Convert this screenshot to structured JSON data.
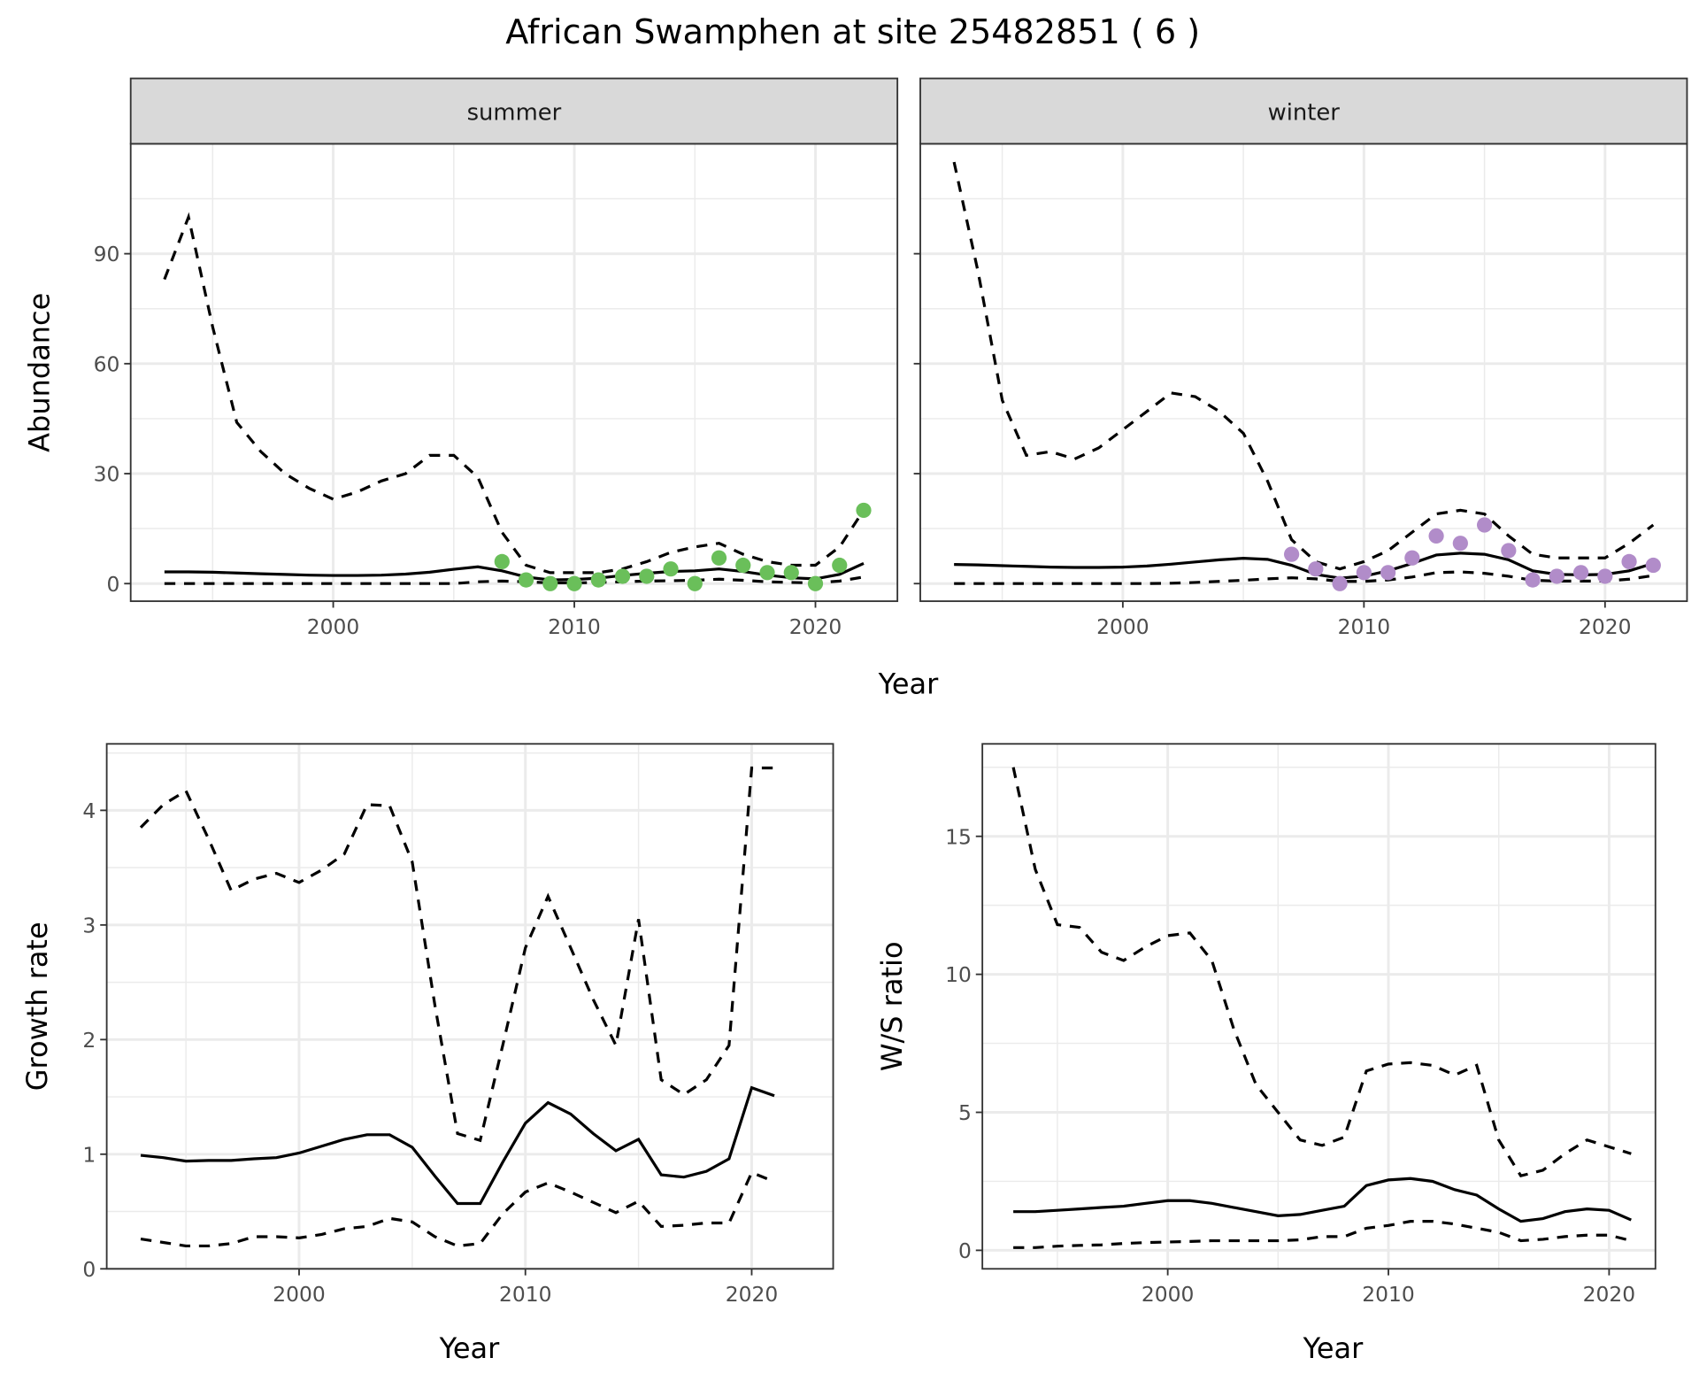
{
  "title": "African Swamphen at site 25482851 ( 6 )",
  "colors": {
    "summer_points": "#6abf5a",
    "winter_points": "#b18cc9",
    "lines": "#000000",
    "strip_bg": "#d9d9d9",
    "grid": "#ebebeb"
  },
  "chart_data": [
    {
      "type": "line",
      "facet": true,
      "xlabel": "Year",
      "ylabel": "Abundance",
      "xlim": [
        1991.6,
        2023.4
      ],
      "ylim": [
        -4.8,
        120
      ],
      "xticks": [
        2000,
        2010,
        2020
      ],
      "yticks": [
        0,
        30,
        60,
        90
      ],
      "grid": true,
      "panels": [
        {
          "strip": "summer",
          "x": [
            1993,
            1994,
            1995,
            1996,
            1997,
            1998,
            1999,
            2000,
            2001,
            2002,
            2003,
            2004,
            2005,
            2006,
            2007,
            2008,
            2009,
            2010,
            2011,
            2012,
            2013,
            2014,
            2015,
            2016,
            2017,
            2018,
            2019,
            2020,
            2021,
            2022
          ],
          "estimate": [
            3.2,
            3.2,
            3.1,
            2.9,
            2.7,
            2.5,
            2.3,
            2.2,
            2.2,
            2.3,
            2.6,
            3.1,
            3.9,
            4.6,
            3.5,
            1.8,
            1.0,
            1.1,
            1.5,
            2.2,
            2.8,
            3.3,
            3.5,
            4.0,
            3.3,
            2.3,
            1.6,
            1.3,
            2.5,
            5.5
          ],
          "upper": [
            83,
            100,
            70,
            44,
            36,
            30,
            26,
            23,
            25,
            28,
            30,
            35,
            35,
            29,
            14,
            5,
            3,
            3,
            3,
            4,
            6,
            8.5,
            10,
            11,
            8,
            6,
            5,
            5,
            10,
            20
          ],
          "lower": [
            0,
            0,
            0,
            0,
            0,
            0,
            0,
            0,
            0,
            0,
            0,
            0,
            0,
            0.5,
            0.7,
            0.5,
            0.2,
            0.2,
            0.3,
            0.5,
            0.7,
            0.8,
            0.9,
            1.2,
            0.9,
            0.5,
            0.3,
            0.2,
            0.7,
            1.8
          ],
          "points_x": [
            2007,
            2008,
            2009,
            2010,
            2011,
            2012,
            2013,
            2014,
            2015,
            2016,
            2017,
            2018,
            2019,
            2020,
            2021,
            2022
          ],
          "points_y": [
            6,
            1,
            0,
            0,
            1,
            2,
            2,
            4,
            0,
            7,
            5,
            3,
            3,
            0,
            5,
            20
          ]
        },
        {
          "strip": "winter",
          "x": [
            1993,
            1994,
            1995,
            1996,
            1997,
            1998,
            1999,
            2000,
            2001,
            2002,
            2003,
            2004,
            2005,
            2006,
            2007,
            2008,
            2009,
            2010,
            2011,
            2012,
            2013,
            2014,
            2015,
            2016,
            2017,
            2018,
            2019,
            2020,
            2021,
            2022
          ],
          "estimate": [
            5.2,
            5.1,
            4.9,
            4.7,
            4.5,
            4.4,
            4.4,
            4.5,
            4.8,
            5.3,
            5.9,
            6.5,
            6.9,
            6.6,
            5,
            2.5,
            1.5,
            2,
            3.5,
            5.5,
            7.8,
            8.3,
            8,
            6.5,
            3.5,
            2.5,
            2.4,
            2.5,
            3.5,
            5.5
          ],
          "upper": [
            115,
            85,
            50,
            35,
            36,
            34,
            37,
            42,
            47,
            52,
            51,
            47,
            41,
            28,
            12,
            6,
            4,
            6,
            9,
            14,
            19,
            20,
            19,
            13,
            8,
            7,
            7,
            7,
            11,
            16
          ],
          "lower": [
            0,
            0,
            0,
            0,
            0,
            0,
            0,
            0,
            0,
            0.1,
            0.3,
            0.6,
            0.9,
            1.3,
            1.6,
            1.3,
            0.6,
            0.6,
            1.0,
            1.8,
            3.0,
            3.2,
            2.8,
            2.0,
            0.9,
            0.7,
            0.7,
            0.7,
            1.2,
            2.2
          ],
          "points_x": [
            2007,
            2008,
            2009,
            2010,
            2011,
            2012,
            2013,
            2014,
            2015,
            2016,
            2017,
            2018,
            2019,
            2020,
            2021,
            2022
          ],
          "points_y": [
            8,
            4,
            0,
            3,
            3,
            7,
            13,
            11,
            16,
            9,
            1,
            2,
            3,
            2,
            6,
            5
          ]
        }
      ]
    },
    {
      "type": "line",
      "xlabel": "Year",
      "ylabel": "Growth rate",
      "xlim": [
        1991.5,
        2023.6
      ],
      "ylim": [
        0,
        4.58
      ],
      "xticks": [
        2000,
        2010,
        2020
      ],
      "yticks": [
        0,
        1,
        2,
        3,
        4
      ],
      "grid": true,
      "x": [
        1993,
        1994,
        1995,
        1996,
        1997,
        1998,
        1999,
        2000,
        2001,
        2002,
        2003,
        2004,
        2005,
        2006,
        2007,
        2008,
        2009,
        2010,
        2011,
        2012,
        2013,
        2014,
        2015,
        2016,
        2017,
        2018,
        2019,
        2020,
        2021
      ],
      "estimate": [
        0.99,
        0.97,
        0.94,
        0.945,
        0.945,
        0.96,
        0.97,
        1.01,
        1.07,
        1.13,
        1.17,
        1.17,
        1.06,
        0.81,
        0.57,
        0.57,
        0.93,
        1.27,
        1.45,
        1.35,
        1.18,
        1.03,
        1.13,
        0.82,
        0.8,
        0.85,
        0.96,
        1.58,
        1.51
      ],
      "upper": [
        3.85,
        4.05,
        4.17,
        3.75,
        3.3,
        3.4,
        3.45,
        3.37,
        3.48,
        3.62,
        4.05,
        4.04,
        3.55,
        2.3,
        1.18,
        1.12,
        1.95,
        2.8,
        3.25,
        2.8,
        2.35,
        1.95,
        3.05,
        1.65,
        1.52,
        1.65,
        1.95,
        4.37,
        4.37
      ],
      "lower": [
        0.26,
        0.23,
        0.2,
        0.2,
        0.22,
        0.28,
        0.28,
        0.27,
        0.3,
        0.35,
        0.37,
        0.44,
        0.41,
        0.28,
        0.2,
        0.22,
        0.48,
        0.67,
        0.75,
        0.67,
        0.58,
        0.49,
        0.59,
        0.37,
        0.38,
        0.4,
        0.4,
        0.84,
        0.76
      ]
    },
    {
      "type": "line",
      "xlabel": "Year",
      "ylabel": "W/S ratio",
      "xlim": [
        1991.6,
        2022.1
      ],
      "ylim": [
        -0.67,
        18.35
      ],
      "xticks": [
        2000,
        2010,
        2020
      ],
      "yticks": [
        0,
        5,
        10,
        15
      ],
      "grid": true,
      "x": [
        1993,
        1994,
        1995,
        1996,
        1997,
        1998,
        1999,
        2000,
        2001,
        2002,
        2003,
        2004,
        2005,
        2006,
        2007,
        2008,
        2009,
        2010,
        2011,
        2012,
        2013,
        2014,
        2015,
        2016,
        2017,
        2018,
        2019,
        2020,
        2021
      ],
      "estimate": [
        1.4,
        1.4,
        1.45,
        1.5,
        1.55,
        1.6,
        1.7,
        1.8,
        1.8,
        1.7,
        1.55,
        1.4,
        1.25,
        1.3,
        1.45,
        1.6,
        2.35,
        2.55,
        2.6,
        2.5,
        2.2,
        2.0,
        1.5,
        1.05,
        1.15,
        1.4,
        1.5,
        1.45,
        1.1
      ],
      "upper": [
        17.5,
        13.8,
        11.8,
        11.7,
        10.8,
        10.5,
        11,
        11.4,
        11.5,
        10.5,
        8,
        6,
        5,
        4,
        3.8,
        4.1,
        6.5,
        6.75,
        6.8,
        6.7,
        6.35,
        6.7,
        4,
        2.7,
        2.9,
        3.5,
        4,
        3.75,
        3.5
      ],
      "lower": [
        0.1,
        0.1,
        0.15,
        0.18,
        0.2,
        0.25,
        0.28,
        0.3,
        0.32,
        0.35,
        0.35,
        0.35,
        0.35,
        0.38,
        0.5,
        0.5,
        0.8,
        0.9,
        1.05,
        1.05,
        0.95,
        0.8,
        0.65,
        0.35,
        0.4,
        0.5,
        0.55,
        0.55,
        0.35
      ]
    }
  ]
}
